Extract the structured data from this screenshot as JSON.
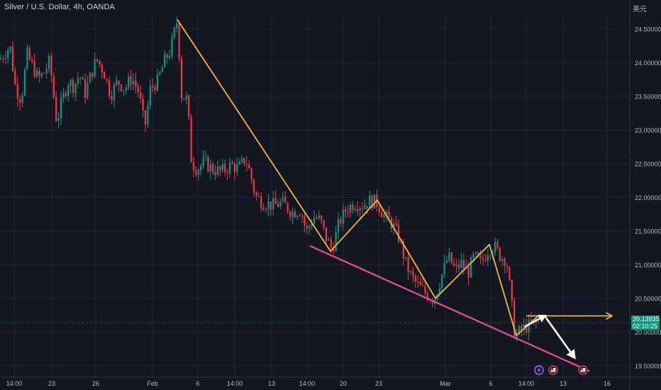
{
  "header": {
    "title": "Silver / U.S. Dollar, 4h, OANDA",
    "currency_label": "美元"
  },
  "current_price": {
    "value": "20.13935",
    "countdown": "02:10:25",
    "color": "#089981"
  },
  "colors": {
    "background": "#131722",
    "up": "#089981",
    "down": "#f23645",
    "yellow": "#f5b82e",
    "pink": "#e0488f",
    "grid": "#1f2330",
    "axis_text": "#b2b5be"
  },
  "event_icons": [
    "flash-icon",
    "us-flag-icon",
    "us-flag-icon"
  ],
  "chart_data": {
    "type": "candlestick",
    "title": "Silver / U.S. Dollar, 4h, OANDA",
    "xlabel": "",
    "ylabel": "",
    "ylim": [
      19.35,
      24.72
    ],
    "y_ticks": [
      19.5,
      20.0,
      20.5,
      21.0,
      21.5,
      22.0,
      22.5,
      23.0,
      23.5,
      24.0,
      24.5
    ],
    "y_tick_labels": [
      "19.50000",
      "20.00000",
      "20.50000",
      "21.00000",
      "21.50000",
      "22.00000",
      "22.50000",
      "23.00000",
      "23.50000",
      "24.00000",
      "24.50000"
    ],
    "x_tick_labels": [
      "14:00",
      "23",
      "26",
      "Feb",
      "6",
      "14:00",
      "13",
      "14:00",
      "20",
      "23",
      "Mar",
      "6",
      "14:00",
      "13",
      "16"
    ],
    "grid": true,
    "price_path": [
      [
        0,
        24.05
      ],
      [
        14,
        24.25
      ],
      [
        22,
        23.62
      ],
      [
        30,
        23.45
      ],
      [
        38,
        24.12
      ],
      [
        46,
        23.95
      ],
      [
        54,
        23.75
      ],
      [
        62,
        23.85
      ],
      [
        70,
        24.02
      ],
      [
        80,
        23.12
      ],
      [
        88,
        23.45
      ],
      [
        96,
        23.72
      ],
      [
        104,
        23.65
      ],
      [
        112,
        23.82
      ],
      [
        120,
        23.55
      ],
      [
        128,
        23.82
      ],
      [
        136,
        24.05
      ],
      [
        146,
        23.88
      ],
      [
        156,
        23.52
      ],
      [
        166,
        23.72
      ],
      [
        176,
        23.62
      ],
      [
        186,
        23.78
      ],
      [
        196,
        23.55
      ],
      [
        204,
        23.02
      ],
      [
        212,
        23.62
      ],
      [
        222,
        23.72
      ],
      [
        232,
        24.02
      ],
      [
        240,
        24.18
      ],
      [
        250,
        24.64
      ],
      [
        256,
        23.52
      ],
      [
        264,
        23.45
      ],
      [
        270,
        22.52
      ],
      [
        278,
        22.42
      ],
      [
        288,
        22.52
      ],
      [
        300,
        22.42
      ],
      [
        312,
        22.38
      ],
      [
        326,
        22.48
      ],
      [
        336,
        22.42
      ],
      [
        346,
        22.58
      ],
      [
        352,
        22.38
      ],
      [
        360,
        22.02
      ],
      [
        372,
        21.92
      ],
      [
        386,
        21.88
      ],
      [
        398,
        21.92
      ],
      [
        412,
        21.78
      ],
      [
        424,
        21.82
      ],
      [
        432,
        21.48
      ],
      [
        442,
        21.72
      ],
      [
        452,
        21.65
      ],
      [
        458,
        21.45
      ],
      [
        468,
        21.22
      ],
      [
        478,
        21.62
      ],
      [
        488,
        21.82
      ],
      [
        500,
        21.92
      ],
      [
        512,
        21.88
      ],
      [
        522,
        21.95
      ],
      [
        532,
        21.92
      ],
      [
        542,
        21.72
      ],
      [
        552,
        21.62
      ],
      [
        562,
        21.42
      ],
      [
        572,
        21.02
      ],
      [
        580,
        20.82
      ],
      [
        590,
        20.68
      ],
      [
        600,
        20.58
      ],
      [
        612,
        20.48
      ],
      [
        622,
        20.82
      ],
      [
        632,
        21.12
      ],
      [
        642,
        20.92
      ],
      [
        650,
        21.02
      ],
      [
        660,
        20.88
      ],
      [
        668,
        21.12
      ],
      [
        678,
        21.02
      ],
      [
        688,
        21.22
      ],
      [
        696,
        21.28
      ],
      [
        706,
        21.12
      ],
      [
        714,
        21.08
      ],
      [
        720,
        20.55
      ],
      [
        726,
        19.92
      ],
      [
        734,
        20.02
      ],
      [
        742,
        20.08
      ],
      [
        752,
        20.12
      ],
      [
        760,
        20.14
      ]
    ],
    "annotations": [
      {
        "type": "polyline",
        "name": "yellow-zigzag",
        "color": "#f5b82e",
        "points": [
          [
            250,
            24.64
          ],
          [
            466,
            21.2
          ],
          [
            532,
            21.96
          ],
          [
            614,
            20.5
          ],
          [
            690,
            21.3
          ],
          [
            728,
            19.95
          ],
          [
            760,
            20.25
          ]
        ]
      },
      {
        "type": "arrow",
        "name": "yellow-horizontal-arrow",
        "color": "#f5b82e",
        "points": [
          [
            742,
            20.24
          ],
          [
            862,
            20.24
          ]
        ]
      },
      {
        "type": "line",
        "name": "pink-support-line",
        "color": "#e0488f",
        "points": [
          [
            437,
            21.28
          ],
          [
            831,
            19.42
          ]
        ]
      },
      {
        "type": "arrow",
        "name": "white-path-arrow",
        "color": "#ffffff",
        "points": [
          [
            740,
            20.08
          ],
          [
            768,
            20.24
          ],
          [
            810,
            19.62
          ]
        ]
      }
    ]
  }
}
